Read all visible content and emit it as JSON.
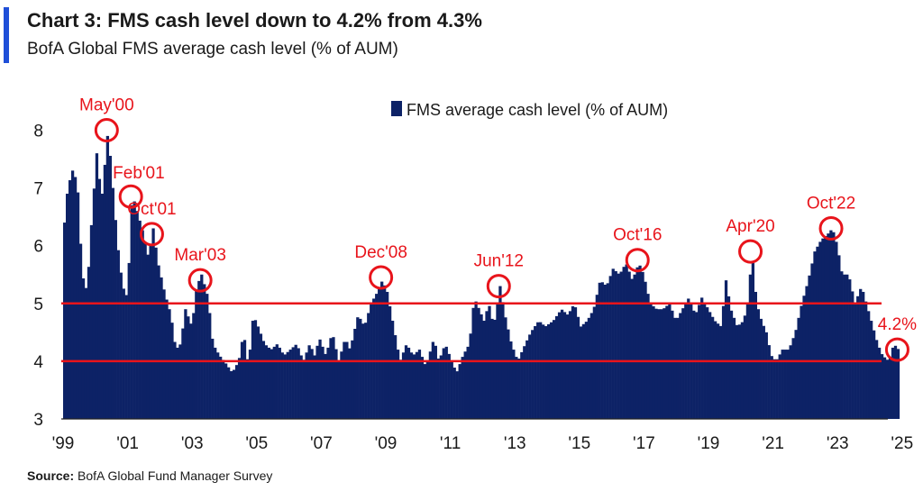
{
  "header": {
    "title": "Chart 3: FMS cash level down to 4.2% from 4.3%",
    "subtitle": "BofA Global FMS average cash level (% of AUM)"
  },
  "footer": {
    "source_label": "Source:",
    "source_text": "BofA Global Fund Manager Survey"
  },
  "colors": {
    "bars": "#0d2266",
    "reference_lines": "#e8141b",
    "annotations": "#e8141b",
    "accent": "#1f4fd8"
  },
  "chart_data": {
    "type": "bar",
    "legend": {
      "label": "FMS average cash level (% of AUM)",
      "placement": "top-center"
    },
    "x_ticks": [
      "'99",
      "'01",
      "'03",
      "'05",
      "'07",
      "'09",
      "'11",
      "'13",
      "'15",
      "'17",
      "'19",
      "'21",
      "'23",
      "'25"
    ],
    "xlim": [
      1999.0,
      2025.3
    ],
    "ylim": [
      3,
      8.5
    ],
    "y_ticks": [
      3,
      4,
      5,
      6,
      7,
      8
    ],
    "reference_lines": [
      5,
      4
    ],
    "anchors": [
      [
        1999.0,
        6.4
      ],
      [
        1999.1,
        7.0
      ],
      [
        1999.25,
        7.3
      ],
      [
        1999.4,
        7.1
      ],
      [
        1999.55,
        5.5
      ],
      [
        1999.7,
        5.2
      ],
      [
        1999.85,
        6.5
      ],
      [
        2000.0,
        7.6
      ],
      [
        2000.15,
        6.8
      ],
      [
        2000.35,
        8.0
      ],
      [
        2000.5,
        7.0
      ],
      [
        2000.65,
        6.0
      ],
      [
        2000.8,
        5.3
      ],
      [
        2000.95,
        5.1
      ],
      [
        2001.1,
        6.9
      ],
      [
        2001.25,
        6.6
      ],
      [
        2001.45,
        6.2
      ],
      [
        2001.6,
        5.8
      ],
      [
        2001.75,
        6.3
      ],
      [
        2001.9,
        5.7
      ],
      [
        2002.1,
        5.2
      ],
      [
        2002.3,
        4.8
      ],
      [
        2002.45,
        4.2
      ],
      [
        2002.6,
        4.3
      ],
      [
        2002.75,
        4.9
      ],
      [
        2002.95,
        4.6
      ],
      [
        2003.1,
        5.3
      ],
      [
        2003.25,
        5.5
      ],
      [
        2003.45,
        5.1
      ],
      [
        2003.6,
        4.3
      ],
      [
        2003.8,
        4.1
      ],
      [
        2003.95,
        4.0
      ],
      [
        2004.2,
        3.8
      ],
      [
        2004.4,
        4.0
      ],
      [
        2004.55,
        4.5
      ],
      [
        2004.7,
        3.9
      ],
      [
        2004.85,
        4.8
      ],
      [
        2005.0,
        4.6
      ],
      [
        2005.2,
        4.3
      ],
      [
        2005.4,
        4.2
      ],
      [
        2005.6,
        4.3
      ],
      [
        2005.8,
        4.1
      ],
      [
        2006.0,
        4.2
      ],
      [
        2006.2,
        4.3
      ],
      [
        2006.4,
        4.0
      ],
      [
        2006.6,
        4.3
      ],
      [
        2006.75,
        4.1
      ],
      [
        2006.9,
        4.4
      ],
      [
        2007.1,
        4.1
      ],
      [
        2007.3,
        4.5
      ],
      [
        2007.5,
        4.0
      ],
      [
        2007.7,
        4.4
      ],
      [
        2007.85,
        4.2
      ],
      [
        2008.1,
        4.8
      ],
      [
        2008.3,
        4.6
      ],
      [
        2008.5,
        5.0
      ],
      [
        2008.7,
        5.2
      ],
      [
        2008.85,
        5.4
      ],
      [
        2009.0,
        5.2
      ],
      [
        2009.2,
        4.6
      ],
      [
        2009.4,
        4.0
      ],
      [
        2009.6,
        4.3
      ],
      [
        2009.8,
        4.1
      ],
      [
        2010.0,
        4.2
      ],
      [
        2010.2,
        3.9
      ],
      [
        2010.45,
        4.4
      ],
      [
        2010.6,
        4.0
      ],
      [
        2010.8,
        4.3
      ],
      [
        2011.0,
        4.0
      ],
      [
        2011.15,
        3.8
      ],
      [
        2011.35,
        4.1
      ],
      [
        2011.55,
        4.3
      ],
      [
        2011.7,
        5.1
      ],
      [
        2011.85,
        4.9
      ],
      [
        2012.0,
        4.7
      ],
      [
        2012.15,
        5.0
      ],
      [
        2012.3,
        4.6
      ],
      [
        2012.5,
        5.3
      ],
      [
        2012.65,
        4.8
      ],
      [
        2012.85,
        4.3
      ],
      [
        2013.05,
        4.0
      ],
      [
        2013.2,
        4.2
      ],
      [
        2013.45,
        4.5
      ],
      [
        2013.7,
        4.7
      ],
      [
        2013.9,
        4.6
      ],
      [
        2014.15,
        4.7
      ],
      [
        2014.4,
        4.9
      ],
      [
        2014.6,
        4.8
      ],
      [
        2014.8,
        5.0
      ],
      [
        2015.0,
        4.6
      ],
      [
        2015.2,
        4.7
      ],
      [
        2015.4,
        4.9
      ],
      [
        2015.6,
        5.4
      ],
      [
        2015.8,
        5.3
      ],
      [
        2016.0,
        5.6
      ],
      [
        2016.2,
        5.5
      ],
      [
        2016.4,
        5.7
      ],
      [
        2016.6,
        5.4
      ],
      [
        2016.8,
        5.7
      ],
      [
        2016.95,
        5.5
      ],
      [
        2017.15,
        5.0
      ],
      [
        2017.35,
        4.9
      ],
      [
        2017.55,
        4.9
      ],
      [
        2017.75,
        5.0
      ],
      [
        2017.95,
        4.7
      ],
      [
        2018.15,
        4.9
      ],
      [
        2018.35,
        5.1
      ],
      [
        2018.55,
        4.8
      ],
      [
        2018.75,
        5.1
      ],
      [
        2018.95,
        4.9
      ],
      [
        2019.15,
        4.7
      ],
      [
        2019.35,
        4.6
      ],
      [
        2019.5,
        5.4
      ],
      [
        2019.65,
        4.9
      ],
      [
        2019.85,
        4.6
      ],
      [
        2020.05,
        4.7
      ],
      [
        2020.2,
        5.1
      ],
      [
        2020.3,
        5.9
      ],
      [
        2020.45,
        5.0
      ],
      [
        2020.6,
        4.7
      ],
      [
        2020.75,
        4.5
      ],
      [
        2020.9,
        4.1
      ],
      [
        2021.05,
        4.0
      ],
      [
        2021.25,
        4.2
      ],
      [
        2021.45,
        4.2
      ],
      [
        2021.65,
        4.5
      ],
      [
        2021.85,
        5.0
      ],
      [
        2022.05,
        5.4
      ],
      [
        2022.25,
        5.9
      ],
      [
        2022.45,
        6.1
      ],
      [
        2022.65,
        6.2
      ],
      [
        2022.8,
        6.3
      ],
      [
        2022.95,
        6.0
      ],
      [
        2023.1,
        5.5
      ],
      [
        2023.3,
        5.5
      ],
      [
        2023.5,
        5.0
      ],
      [
        2023.7,
        5.3
      ],
      [
        2023.9,
        4.9
      ],
      [
        2024.05,
        4.6
      ],
      [
        2024.2,
        4.3
      ],
      [
        2024.35,
        4.1
      ],
      [
        2024.55,
        4.0
      ],
      [
        2024.7,
        4.3
      ],
      [
        2024.85,
        4.2
      ]
    ],
    "annotations": [
      {
        "label": "May'00",
        "x": 2000.35,
        "y": 8.0,
        "label_pos": "above"
      },
      {
        "label": "Feb'01",
        "x": 2001.1,
        "y": 6.85,
        "label_pos": "above-right"
      },
      {
        "label": "Oct'01",
        "x": 2001.75,
        "y": 6.2,
        "label_pos": "above"
      },
      {
        "label": "Mar'03",
        "x": 2003.25,
        "y": 5.4,
        "label_pos": "above"
      },
      {
        "label": "Dec'08",
        "x": 2008.85,
        "y": 5.45,
        "label_pos": "above"
      },
      {
        "label": "Jun'12",
        "x": 2012.5,
        "y": 5.3,
        "label_pos": "above"
      },
      {
        "label": "Oct'16",
        "x": 2016.8,
        "y": 5.75,
        "label_pos": "above"
      },
      {
        "label": "Apr'20",
        "x": 2020.3,
        "y": 5.9,
        "label_pos": "above"
      },
      {
        "label": "Oct'22",
        "x": 2022.8,
        "y": 6.3,
        "label_pos": "above"
      },
      {
        "label": "4.2%",
        "x": 2024.85,
        "y": 4.2,
        "label_pos": "above"
      }
    ]
  }
}
